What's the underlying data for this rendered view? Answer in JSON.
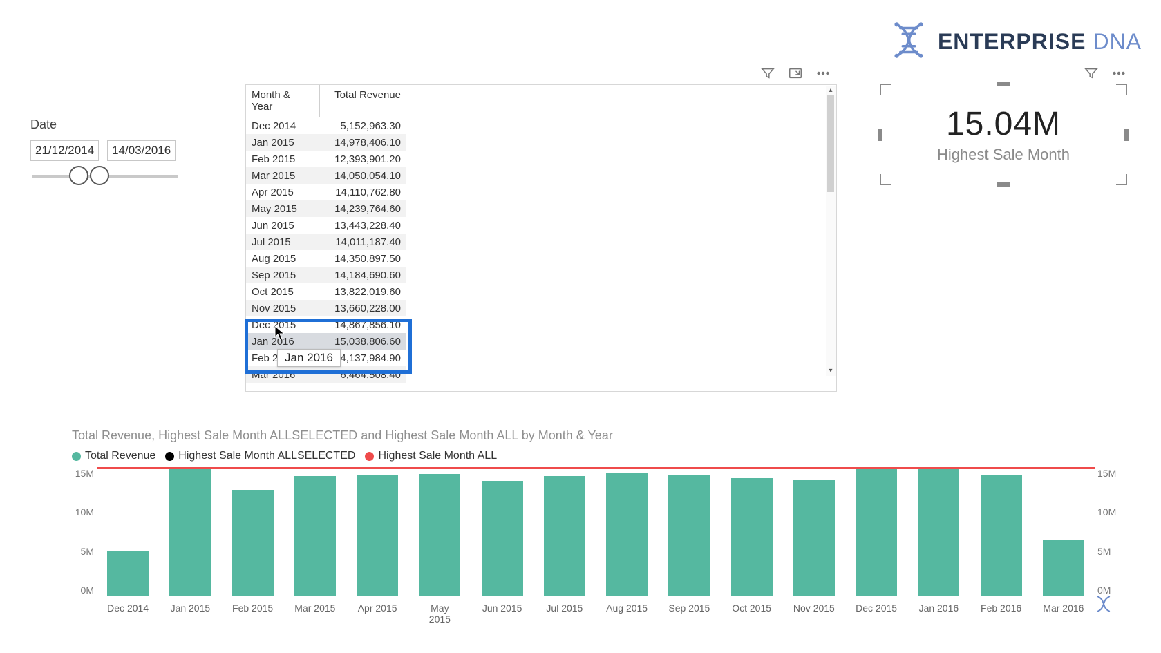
{
  "logo": {
    "word1": "ENTERPRISE",
    "word2": "DNA",
    "color1": "#2a3b56",
    "color2": "#6d8ccb",
    "helix_color": "#6d8ccb"
  },
  "date_slicer": {
    "label": "Date",
    "from": "21/12/2014",
    "to": "14/03/2016"
  },
  "table": {
    "columns": [
      "Month & Year",
      "Total Revenue"
    ],
    "rows": [
      [
        "Dec 2014",
        "5,152,963.30"
      ],
      [
        "Jan 2015",
        "14,978,406.10"
      ],
      [
        "Feb 2015",
        "12,393,901.20"
      ],
      [
        "Mar 2015",
        "14,050,054.10"
      ],
      [
        "Apr 2015",
        "14,110,762.80"
      ],
      [
        "May 2015",
        "14,239,764.60"
      ],
      [
        "Jun 2015",
        "13,443,228.40"
      ],
      [
        "Jul 2015",
        "14,011,187.40"
      ],
      [
        "Aug 2015",
        "14,350,897.50"
      ],
      [
        "Sep 2015",
        "14,184,690.60"
      ],
      [
        "Oct 2015",
        "13,822,019.60"
      ],
      [
        "Nov 2015",
        "13,660,228.00"
      ],
      [
        "Dec 2015",
        "14,867,856.10"
      ],
      [
        "Jan 2016",
        "15,038,806.60"
      ],
      [
        "Feb 2016",
        "14,137,984.90"
      ],
      [
        "Mar 2016",
        "6,464,508.40"
      ]
    ],
    "highlight_row_index": 13,
    "tooltip_text": "Jan 2016",
    "alt_row_bg": "#f2f2f2",
    "highlight_row_bg": "#d8dbe0",
    "blue_box_color": "#1f6fd6"
  },
  "kpi": {
    "value": "15.04M",
    "label": "Highest Sale Month",
    "value_color": "#222222",
    "label_color": "#8a8a8a"
  },
  "chart": {
    "type": "bar+line",
    "title": "Total Revenue, Highest Sale Month ALLSELECTED and Highest Sale Month ALL by Month & Year",
    "legend": [
      {
        "label": "Total Revenue",
        "color": "#55b8a0"
      },
      {
        "label": "Highest Sale Month ALLSELECTED",
        "color": "#000000"
      },
      {
        "label": "Highest Sale Month ALL",
        "color": "#ef4b4b"
      }
    ],
    "categories": [
      "Dec 2014",
      "Jan 2015",
      "Feb 2015",
      "Mar 2015",
      "Apr 2015",
      "May 2015",
      "Jun 2015",
      "Jul 2015",
      "Aug 2015",
      "Sep 2015",
      "Oct 2015",
      "Nov 2015",
      "Dec 2015",
      "Jan 2016",
      "Feb 2016",
      "Mar 2016"
    ],
    "values": [
      5.15,
      14.98,
      12.39,
      14.05,
      14.11,
      14.24,
      13.44,
      14.01,
      14.35,
      14.18,
      13.82,
      13.66,
      14.87,
      15.04,
      14.14,
      6.46
    ],
    "bar_color": "#55b8a0",
    "ref_line_all": {
      "value": 15.04,
      "color": "#ef4b4b"
    },
    "ref_line_allselected": {
      "value": 15.04,
      "color": "#000000"
    },
    "y_ticks": [
      "15M",
      "10M",
      "5M",
      "0M"
    ],
    "y_max": 15,
    "background": "#ffffff",
    "axis_color": "#777777",
    "font_size_axis": 14
  }
}
